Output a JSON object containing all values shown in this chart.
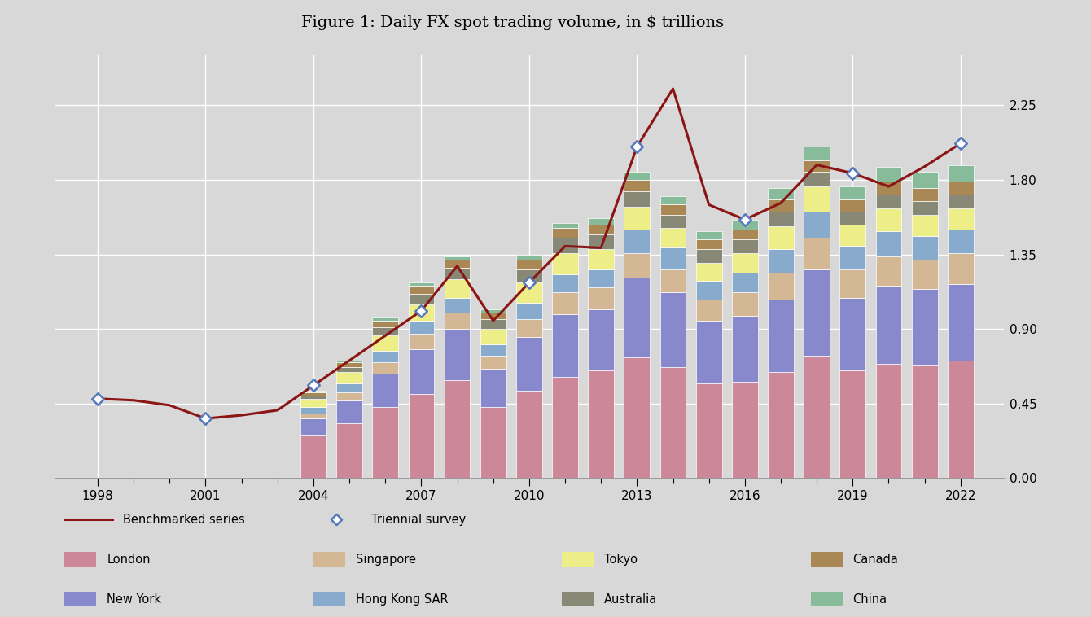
{
  "title": "Figure 1: Daily FX spot trading volume, in $ trillions",
  "bg_color": "#d8d8d8",
  "colors": {
    "London": "#cc8899",
    "New York": "#8888cc",
    "Singapore": "#d4b896",
    "Hong Kong SAR": "#88aacc",
    "Tokyo": "#eeee88",
    "Australia": "#888877",
    "Canada": "#aa8855",
    "China": "#88bb99"
  },
  "line_color": "#8b1515",
  "triennial_color": "#5577bb",
  "years": [
    2004,
    2005,
    2006,
    2007,
    2008,
    2009,
    2010,
    2011,
    2012,
    2013,
    2014,
    2015,
    2016,
    2017,
    2018,
    2019,
    2020,
    2021,
    2022
  ],
  "bar_data": {
    "London": [
      0.26,
      0.33,
      0.43,
      0.51,
      0.59,
      0.43,
      0.53,
      0.61,
      0.65,
      0.73,
      0.67,
      0.57,
      0.58,
      0.64,
      0.74,
      0.65,
      0.69,
      0.68,
      0.71
    ],
    "New York": [
      0.1,
      0.14,
      0.2,
      0.27,
      0.31,
      0.23,
      0.32,
      0.38,
      0.37,
      0.48,
      0.45,
      0.38,
      0.4,
      0.44,
      0.52,
      0.44,
      0.47,
      0.46,
      0.46
    ],
    "Singapore": [
      0.03,
      0.05,
      0.07,
      0.09,
      0.1,
      0.08,
      0.11,
      0.13,
      0.13,
      0.15,
      0.14,
      0.13,
      0.14,
      0.16,
      0.19,
      0.17,
      0.18,
      0.18,
      0.19
    ],
    "Hong Kong SAR": [
      0.04,
      0.05,
      0.07,
      0.08,
      0.09,
      0.07,
      0.1,
      0.11,
      0.11,
      0.14,
      0.13,
      0.11,
      0.12,
      0.14,
      0.16,
      0.14,
      0.15,
      0.14,
      0.14
    ],
    "Tokyo": [
      0.05,
      0.07,
      0.09,
      0.1,
      0.11,
      0.09,
      0.12,
      0.13,
      0.12,
      0.14,
      0.12,
      0.11,
      0.12,
      0.14,
      0.15,
      0.13,
      0.14,
      0.13,
      0.13
    ],
    "Australia": [
      0.02,
      0.03,
      0.05,
      0.06,
      0.07,
      0.06,
      0.08,
      0.09,
      0.09,
      0.09,
      0.08,
      0.08,
      0.08,
      0.09,
      0.09,
      0.08,
      0.08,
      0.08,
      0.08
    ],
    "Canada": [
      0.02,
      0.03,
      0.04,
      0.05,
      0.05,
      0.04,
      0.06,
      0.06,
      0.06,
      0.07,
      0.06,
      0.06,
      0.06,
      0.07,
      0.07,
      0.07,
      0.08,
      0.08,
      0.08
    ],
    "China": [
      0.01,
      0.01,
      0.02,
      0.02,
      0.02,
      0.02,
      0.03,
      0.03,
      0.04,
      0.05,
      0.05,
      0.05,
      0.06,
      0.07,
      0.08,
      0.08,
      0.09,
      0.1,
      0.1
    ]
  },
  "line_years": [
    1998,
    1999,
    2000,
    2001,
    2002,
    2003,
    2004,
    2005,
    2006,
    2007,
    2008,
    2009,
    2010,
    2011,
    2012,
    2013,
    2014,
    2015,
    2016,
    2017,
    2018,
    2019,
    2020,
    2021,
    2022
  ],
  "line_values": [
    0.48,
    0.47,
    0.44,
    0.36,
    0.38,
    0.41,
    0.56,
    0.71,
    0.86,
    1.01,
    1.28,
    0.95,
    1.18,
    1.4,
    1.39,
    2.0,
    2.35,
    1.65,
    1.56,
    1.66,
    1.89,
    1.84,
    1.76,
    1.88,
    2.02
  ],
  "triennial_years": [
    1998,
    2001,
    2004,
    2007,
    2010,
    2013,
    2016,
    2019,
    2022
  ],
  "triennial_values": [
    0.48,
    0.36,
    0.56,
    1.01,
    1.18,
    2.0,
    1.56,
    1.84,
    2.02
  ],
  "yticks": [
    0.0,
    0.45,
    0.9,
    1.35,
    1.8,
    2.25
  ],
  "major_xticks": [
    1998,
    2001,
    2004,
    2007,
    2010,
    2013,
    2016,
    2019,
    2022
  ],
  "all_bar_years": [
    2004,
    2005,
    2006,
    2007,
    2008,
    2009,
    2010,
    2011,
    2012,
    2013,
    2014,
    2015,
    2016,
    2017,
    2018,
    2019,
    2020,
    2021,
    2022
  ],
  "stack_order": [
    "London",
    "New York",
    "Singapore",
    "Hong Kong SAR",
    "Tokyo",
    "Australia",
    "Canada",
    "China"
  ]
}
